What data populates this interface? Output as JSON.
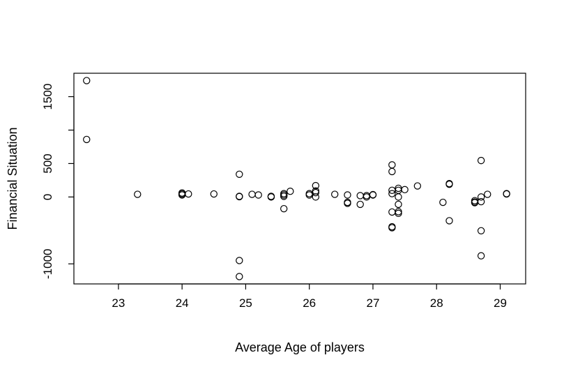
{
  "chart_data": {
    "type": "scatter",
    "title": "",
    "xlabel": "Average Age of players",
    "ylabel": "Financial Situation",
    "xlim": [
      22.3,
      29.4
    ],
    "ylim": [
      -1300,
      1850
    ],
    "x_ticks": [
      23,
      24,
      25,
      26,
      27,
      28,
      29
    ],
    "x_tick_labels": [
      "23",
      "24",
      "25",
      "26",
      "27",
      "28",
      "29"
    ],
    "y_ticks": [
      -1000,
      0,
      500,
      1500
    ],
    "y_tick_labels": [
      "-1000",
      "0",
      "500",
      "1500"
    ],
    "y_minor_ticks": [
      1000
    ],
    "grid": false,
    "marker": "open-circle",
    "colors": {
      "marker": "#000000",
      "axis": "#000000",
      "background": "#ffffff"
    },
    "points": [
      {
        "x": 22.5,
        "y": 1740
      },
      {
        "x": 22.5,
        "y": 860
      },
      {
        "x": 23.3,
        "y": 40
      },
      {
        "x": 24.0,
        "y": 60
      },
      {
        "x": 24.0,
        "y": 45
      },
      {
        "x": 24.0,
        "y": 30
      },
      {
        "x": 24.1,
        "y": 45
      },
      {
        "x": 24.5,
        "y": 45
      },
      {
        "x": 24.9,
        "y": 340
      },
      {
        "x": 24.9,
        "y": 10
      },
      {
        "x": 24.9,
        "y": 5
      },
      {
        "x": 24.9,
        "y": -950
      },
      {
        "x": 24.9,
        "y": -1190
      },
      {
        "x": 25.1,
        "y": 40
      },
      {
        "x": 25.2,
        "y": 30
      },
      {
        "x": 25.4,
        "y": 10
      },
      {
        "x": 25.4,
        "y": 0
      },
      {
        "x": 25.6,
        "y": 50
      },
      {
        "x": 25.6,
        "y": 30
      },
      {
        "x": 25.6,
        "y": 10
      },
      {
        "x": 25.6,
        "y": -175
      },
      {
        "x": 25.7,
        "y": 85
      },
      {
        "x": 26.0,
        "y": 50
      },
      {
        "x": 26.0,
        "y": 30
      },
      {
        "x": 26.1,
        "y": 170
      },
      {
        "x": 26.1,
        "y": 90
      },
      {
        "x": 26.1,
        "y": 65
      },
      {
        "x": 26.1,
        "y": 0
      },
      {
        "x": 26.4,
        "y": 40
      },
      {
        "x": 26.6,
        "y": 30
      },
      {
        "x": 26.6,
        "y": -80
      },
      {
        "x": 26.6,
        "y": -95
      },
      {
        "x": 26.8,
        "y": 20
      },
      {
        "x": 26.8,
        "y": -110
      },
      {
        "x": 26.9,
        "y": 20
      },
      {
        "x": 26.9,
        "y": 0
      },
      {
        "x": 27.0,
        "y": 35
      },
      {
        "x": 27.0,
        "y": 30
      },
      {
        "x": 27.3,
        "y": 480
      },
      {
        "x": 27.3,
        "y": 380
      },
      {
        "x": 27.3,
        "y": 100
      },
      {
        "x": 27.3,
        "y": 50
      },
      {
        "x": 27.3,
        "y": -225
      },
      {
        "x": 27.3,
        "y": -445
      },
      {
        "x": 27.3,
        "y": -460
      },
      {
        "x": 27.4,
        "y": 130
      },
      {
        "x": 27.4,
        "y": 100
      },
      {
        "x": 27.4,
        "y": 0
      },
      {
        "x": 27.4,
        "y": -110
      },
      {
        "x": 27.4,
        "y": -220
      },
      {
        "x": 27.4,
        "y": -245
      },
      {
        "x": 27.5,
        "y": 110
      },
      {
        "x": 27.7,
        "y": 165
      },
      {
        "x": 28.1,
        "y": -80
      },
      {
        "x": 28.2,
        "y": 200
      },
      {
        "x": 28.2,
        "y": 190
      },
      {
        "x": 28.2,
        "y": -355
      },
      {
        "x": 28.6,
        "y": -55
      },
      {
        "x": 28.6,
        "y": -75
      },
      {
        "x": 28.6,
        "y": -85
      },
      {
        "x": 28.7,
        "y": 545
      },
      {
        "x": 28.7,
        "y": 0
      },
      {
        "x": 28.7,
        "y": -70
      },
      {
        "x": 28.7,
        "y": -505
      },
      {
        "x": 28.7,
        "y": -880
      },
      {
        "x": 28.8,
        "y": 40
      },
      {
        "x": 29.1,
        "y": 50
      },
      {
        "x": 29.1,
        "y": 45
      }
    ]
  }
}
